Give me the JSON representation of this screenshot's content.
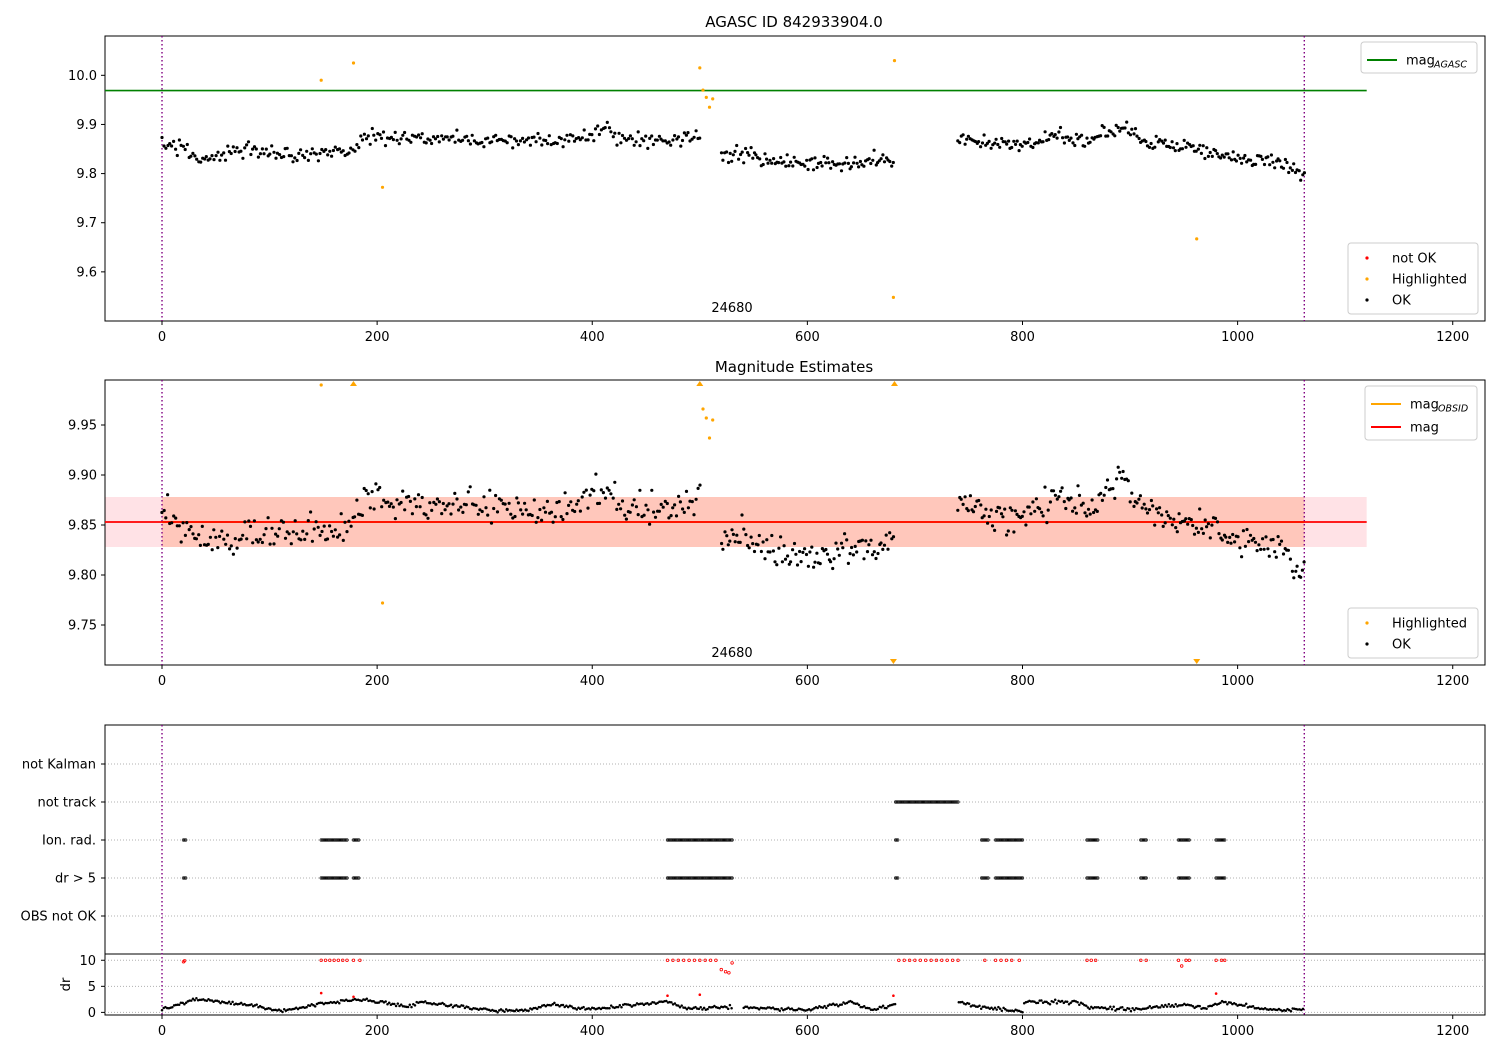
{
  "chart_data": [
    {
      "type": "scatter",
      "title": "AGASC ID 842933904.0",
      "xlim": [
        -53,
        1230
      ],
      "ylim": [
        9.5,
        10.08
      ],
      "xticks": [
        0,
        200,
        400,
        600,
        800,
        1000,
        1200
      ],
      "xtick_labels": [
        "0",
        "200",
        "400",
        "600",
        "800",
        "1000",
        "1200"
      ],
      "yticks": [
        9.6,
        9.7,
        9.8,
        9.9,
        10.0
      ],
      "ytick_labels": [
        "9.6",
        "9.7",
        "9.8",
        "9.9",
        "10.0"
      ],
      "annotation": "24680",
      "annotation_x": 530,
      "vlines": [
        0,
        1062
      ],
      "reference_line": {
        "name": "mag_AGASC",
        "value": 9.969,
        "x": [
          -53,
          1120
        ],
        "color": "#008000"
      },
      "legend_top": [
        {
          "label_main": "mag",
          "label_sub": "AGASC",
          "kind": "line",
          "color": "#008000"
        }
      ],
      "legend_bottom": [
        {
          "label": "not OK",
          "kind": "dot",
          "color": "#ff0000"
        },
        {
          "label": "Highlighted",
          "kind": "dot",
          "color": "#ffa500"
        },
        {
          "label": "OK",
          "kind": "dot",
          "color": "#000000"
        }
      ],
      "series": [
        {
          "name": "OK",
          "color": "#000000",
          "trend": [
            [
              0,
              9.865
            ],
            [
              20,
              9.85
            ],
            [
              40,
              9.83
            ],
            [
              80,
              9.845
            ],
            [
              120,
              9.84
            ],
            [
              170,
              9.845
            ],
            [
              190,
              9.875
            ],
            [
              300,
              9.87
            ],
            [
              360,
              9.865
            ],
            [
              400,
              9.88
            ],
            [
              410,
              9.895
            ],
            [
              430,
              9.865
            ],
            [
              480,
              9.87
            ],
            [
              500,
              9.88
            ]
          ],
          "spread": 0.012,
          "n": 280
        },
        {
          "name": "OK",
          "color": "#000000",
          "trend": [
            [
              520,
              9.835
            ],
            [
              540,
              9.84
            ],
            [
              560,
              9.825
            ],
            [
              600,
              9.815
            ],
            [
              640,
              9.825
            ],
            [
              680,
              9.83
            ]
          ],
          "spread": 0.012,
          "n": 100
        },
        {
          "name": "OK",
          "color": "#000000",
          "trend": [
            [
              740,
              9.875
            ],
            [
              780,
              9.86
            ],
            [
              800,
              9.855
            ],
            [
              830,
              9.88
            ],
            [
              860,
              9.865
            ],
            [
              890,
              9.895
            ],
            [
              920,
              9.865
            ],
            [
              960,
              9.85
            ],
            [
              1000,
              9.83
            ],
            [
              1040,
              9.825
            ],
            [
              1062,
              9.8
            ]
          ],
          "spread": 0.012,
          "n": 200
        },
        {
          "name": "Highlighted",
          "color": "#ffa500",
          "points": [
            [
              148,
              9.99
            ],
            [
              178,
              10.025
            ],
            [
              205,
              9.772
            ],
            [
              500,
              10.015
            ],
            [
              503,
              9.97
            ],
            [
              506,
              9.955
            ],
            [
              509,
              9.935
            ],
            [
              512,
              9.952
            ],
            [
              680,
              9.548
            ],
            [
              681,
              10.03
            ],
            [
              962,
              9.667
            ]
          ]
        }
      ]
    },
    {
      "type": "scatter",
      "title": "Magnitude Estimates",
      "xlim": [
        -53,
        1230
      ],
      "ylim": [
        9.71,
        9.995
      ],
      "xticks": [
        0,
        200,
        400,
        600,
        800,
        1000,
        1200
      ],
      "xtick_labels": [
        "0",
        "200",
        "400",
        "600",
        "800",
        "1000",
        "1200"
      ],
      "yticks": [
        9.75,
        9.8,
        9.85,
        9.9,
        9.95
      ],
      "ytick_labels": [
        "9.75",
        "9.80",
        "9.85",
        "9.90",
        "9.95"
      ],
      "annotation": "24680",
      "annotation_x": 530,
      "vlines": [
        0,
        1062
      ],
      "band_outer": {
        "low": 9.828,
        "high": 9.878,
        "x": [
          -53,
          1120
        ],
        "color": "#ffb6c1"
      },
      "band_inner": {
        "low": 9.828,
        "high": 9.878,
        "x": [
          0,
          1062
        ],
        "color": "#ffa07a"
      },
      "lines": [
        {
          "name": "mag_OBSID",
          "value": 9.853,
          "x": [
            0,
            1062
          ],
          "color": "#ffa500"
        },
        {
          "name": "mag",
          "value": 9.853,
          "x": [
            -53,
            1120
          ],
          "color": "#ff0000"
        }
      ],
      "legend_top": [
        {
          "label_main": "mag",
          "label_sub": "OBSID",
          "kind": "line",
          "color": "#ffa500"
        },
        {
          "label_main": "mag",
          "label_sub": "",
          "kind": "line",
          "color": "#ff0000"
        }
      ],
      "legend_bottom": [
        {
          "label": "Highlighted",
          "kind": "dot",
          "color": "#ffa500"
        },
        {
          "label": "OK",
          "kind": "dot",
          "color": "#000000"
        }
      ],
      "series": [
        {
          "name": "OK",
          "color": "#000000",
          "trend": [
            [
              0,
              9.865
            ],
            [
              20,
              9.85
            ],
            [
              40,
              9.83
            ],
            [
              80,
              9.845
            ],
            [
              120,
              9.84
            ],
            [
              170,
              9.845
            ],
            [
              190,
              9.875
            ],
            [
              300,
              9.87
            ],
            [
              360,
              9.865
            ],
            [
              400,
              9.88
            ],
            [
              410,
              9.895
            ],
            [
              430,
              9.865
            ],
            [
              480,
              9.87
            ],
            [
              500,
              9.88
            ]
          ],
          "spread": 0.012,
          "n": 280
        },
        {
          "name": "OK",
          "color": "#000000",
          "trend": [
            [
              520,
              9.835
            ],
            [
              540,
              9.84
            ],
            [
              560,
              9.825
            ],
            [
              600,
              9.815
            ],
            [
              640,
              9.825
            ],
            [
              680,
              9.83
            ]
          ],
          "spread": 0.012,
          "n": 100
        },
        {
          "name": "OK",
          "color": "#000000",
          "trend": [
            [
              740,
              9.875
            ],
            [
              780,
              9.86
            ],
            [
              800,
              9.855
            ],
            [
              830,
              9.88
            ],
            [
              860,
              9.865
            ],
            [
              890,
              9.895
            ],
            [
              920,
              9.865
            ],
            [
              960,
              9.85
            ],
            [
              1000,
              9.83
            ],
            [
              1040,
              9.825
            ],
            [
              1062,
              9.8
            ]
          ],
          "spread": 0.012,
          "n": 200
        },
        {
          "name": "Highlighted",
          "color": "#ffa500",
          "points": [
            [
              148,
              9.99
            ],
            [
              205,
              9.772
            ],
            [
              503,
              9.966
            ],
            [
              506,
              9.957
            ],
            [
              509,
              9.937
            ],
            [
              512,
              9.955
            ]
          ]
        }
      ],
      "off_scale_markers": [
        {
          "x": 178,
          "dir": "up"
        },
        {
          "x": 500,
          "dir": "up"
        },
        {
          "x": 681,
          "dir": "up"
        },
        {
          "x": 680,
          "dir": "down"
        },
        {
          "x": 962,
          "dir": "down"
        }
      ]
    },
    {
      "type": "scatter",
      "title": "",
      "xlim": [
        -53,
        1230
      ],
      "xticks": [
        0,
        200,
        400,
        600,
        800,
        1000,
        1200
      ],
      "xtick_labels": [
        "0",
        "200",
        "400",
        "600",
        "800",
        "1000",
        "1200"
      ],
      "vlines": [
        0,
        1062
      ],
      "flag_rows": [
        "not Kalman",
        "not track",
        "Ion. rad.",
        "dr > 5",
        "OBS not OK"
      ],
      "flag_ranges": [
        {
          "row": "not track",
          "ranges": [
            [
              682,
              740
            ]
          ]
        },
        {
          "row": "Ion. rad.",
          "ranges": [
            [
              20,
              22
            ],
            [
              148,
              172
            ],
            [
              178,
              183
            ],
            [
              470,
              530
            ],
            [
              682,
              684
            ],
            [
              762,
              768
            ],
            [
              775,
              800
            ],
            [
              860,
              870
            ],
            [
              910,
              915
            ],
            [
              945,
              955
            ],
            [
              980,
              988
            ]
          ]
        },
        {
          "row": "dr > 5",
          "ranges": [
            [
              20,
              22
            ],
            [
              148,
              172
            ],
            [
              178,
              183
            ],
            [
              470,
              530
            ],
            [
              682,
              684
            ],
            [
              762,
              768
            ],
            [
              775,
              800
            ],
            [
              860,
              870
            ],
            [
              910,
              915
            ],
            [
              945,
              955
            ],
            [
              980,
              988
            ]
          ]
        }
      ],
      "dr": {
        "ylabel": "dr",
        "ylim": [
          -0.5,
          11.2
        ],
        "yticks": [
          0,
          5,
          10
        ],
        "ytick_labels": [
          "0",
          "5",
          "10"
        ],
        "ok_trend": [
          [
            0,
            0.5
          ],
          [
            30,
            2.5
          ],
          [
            80,
            1.5
          ],
          [
            110,
            0.2
          ],
          [
            150,
            1.8
          ],
          [
            190,
            2.5
          ],
          [
            230,
            1.0
          ],
          [
            240,
            2.0
          ],
          [
            280,
            1.0
          ],
          [
            310,
            0.3
          ],
          [
            340,
            0.5
          ],
          [
            360,
            1.5
          ],
          [
            400,
            0.6
          ],
          [
            440,
            1.5
          ],
          [
            470,
            2.0
          ],
          [
            490,
            0.8
          ],
          [
            530,
            1.0
          ],
          [
            560,
            0.8
          ],
          [
            600,
            0.5
          ],
          [
            640,
            2.0
          ],
          [
            660,
            0.5
          ],
          [
            680,
            1.5
          ],
          [
            740,
            2.0
          ],
          [
            760,
            1.0
          ],
          [
            800,
            0.2
          ],
          [
            801,
            2.0
          ],
          [
            850,
            2.0
          ],
          [
            860,
            1.0
          ],
          [
            900,
            0.5
          ],
          [
            950,
            1.5
          ],
          [
            970,
            0.8
          ],
          [
            985,
            2.0
          ],
          [
            1000,
            1.5
          ],
          [
            1030,
            0.5
          ],
          [
            1062,
            0.6
          ]
        ],
        "ok_gaps": [
          [
            530,
            540
          ],
          [
            683,
            740
          ],
          [
            1063,
            1200
          ]
        ],
        "red_points": [
          [
            20,
            9.7
          ],
          [
            21,
            9.9
          ],
          [
            148,
            10
          ],
          [
            152,
            10
          ],
          [
            156,
            10
          ],
          [
            160,
            10
          ],
          [
            164,
            10
          ],
          [
            168,
            10
          ],
          [
            172,
            10
          ],
          [
            178,
            10
          ],
          [
            184,
            10
          ],
          [
            470,
            10
          ],
          [
            475,
            10
          ],
          [
            480,
            10
          ],
          [
            485,
            10
          ],
          [
            490,
            10
          ],
          [
            495,
            10
          ],
          [
            500,
            10
          ],
          [
            505,
            10
          ],
          [
            510,
            10
          ],
          [
            515,
            10
          ],
          [
            520,
            8.2
          ],
          [
            524,
            7.8
          ],
          [
            527,
            7.6
          ],
          [
            530,
            9.5
          ],
          [
            685,
            10
          ],
          [
            690,
            10
          ],
          [
            695,
            10
          ],
          [
            700,
            10
          ],
          [
            705,
            10
          ],
          [
            710,
            10
          ],
          [
            715,
            10
          ],
          [
            720,
            10
          ],
          [
            725,
            10
          ],
          [
            730,
            10
          ],
          [
            735,
            10
          ],
          [
            740,
            10
          ],
          [
            765,
            10
          ],
          [
            775,
            10
          ],
          [
            780,
            10
          ],
          [
            785,
            10
          ],
          [
            790,
            10
          ],
          [
            797,
            10
          ],
          [
            860,
            10
          ],
          [
            864,
            10
          ],
          [
            868,
            10
          ],
          [
            910,
            10
          ],
          [
            915,
            10
          ],
          [
            945,
            10
          ],
          [
            948,
            8.9
          ],
          [
            952,
            10
          ],
          [
            955,
            10
          ],
          [
            980,
            10
          ],
          [
            985,
            10
          ],
          [
            988,
            10
          ]
        ],
        "red_low_points": [
          [
            148,
            3.7
          ],
          [
            178,
            3.0
          ],
          [
            470,
            3.2
          ],
          [
            500,
            3.4
          ],
          [
            680,
            3.2
          ],
          [
            980,
            3.6
          ]
        ]
      }
    }
  ]
}
